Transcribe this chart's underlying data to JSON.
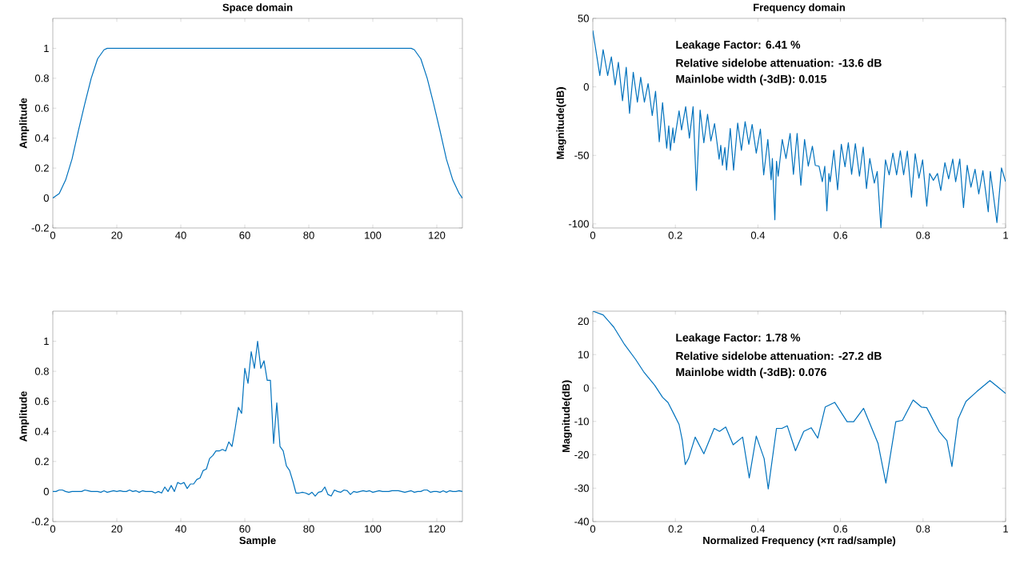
{
  "chart_data": [
    {
      "type": "line",
      "title": "Space domain",
      "ylabel": "Amplitude",
      "color": "#0072bd",
      "xlim": [
        0,
        128
      ],
      "ylim": [
        -0.2,
        1.2
      ],
      "xticks": [
        0,
        20,
        40,
        60,
        80,
        100,
        120
      ],
      "yticks": [
        -0.2,
        0,
        0.2,
        0.4,
        0.6,
        0.8,
        1
      ],
      "x": [
        0,
        2,
        4,
        6,
        8,
        10,
        12,
        14,
        16,
        17,
        112,
        113,
        115,
        117,
        119,
        121,
        123,
        125,
        127,
        128
      ],
      "values": [
        0,
        0.03,
        0.12,
        0.26,
        0.45,
        0.63,
        0.8,
        0.93,
        0.99,
        1,
        1,
        0.99,
        0.93,
        0.8,
        0.63,
        0.45,
        0.26,
        0.12,
        0.03,
        0
      ]
    },
    {
      "type": "line",
      "title": "Frequency domain",
      "ylabel": "Magnitude(dB)",
      "color": "#0072bd",
      "xlim": [
        0,
        1
      ],
      "ylim": [
        -103,
        50
      ],
      "xticks": [
        0,
        0.2,
        0.4,
        0.6,
        0.8,
        1
      ],
      "yticks": [
        -100,
        -50,
        0,
        50
      ],
      "annotations": [
        "Leakage Factor: 6.41 %",
        "Relative sidelobe attenuation: -13.6 dB",
        "Mainlobe width (-3dB): 0.015"
      ],
      "x": [
        0,
        0.017,
        0.025,
        0.036,
        0.045,
        0.054,
        0.062,
        0.072,
        0.081,
        0.089,
        0.098,
        0.108,
        0.116,
        0.125,
        0.134,
        0.144,
        0.152,
        0.161,
        0.169,
        0.179,
        0.184,
        0.188,
        0.194,
        0.197,
        0.209,
        0.215,
        0.225,
        0.234,
        0.243,
        0.251,
        0.26,
        0.269,
        0.278,
        0.286,
        0.295,
        0.306,
        0.31,
        0.314,
        0.32,
        0.324,
        0.333,
        0.341,
        0.351,
        0.36,
        0.369,
        0.378,
        0.386,
        0.396,
        0.406,
        0.414,
        0.424,
        0.432,
        0.435,
        0.441,
        0.445,
        0.449,
        0.459,
        0.468,
        0.478,
        0.486,
        0.495,
        0.504,
        0.513,
        0.522,
        0.532,
        0.539,
        0.548,
        0.556,
        0.562,
        0.567,
        0.572,
        0.575,
        0.584,
        0.593,
        0.602,
        0.611,
        0.619,
        0.627,
        0.636,
        0.646,
        0.655,
        0.663,
        0.671,
        0.682,
        0.689,
        0.698,
        0.709,
        0.718,
        0.727,
        0.736,
        0.745,
        0.753,
        0.762,
        0.772,
        0.781,
        0.79,
        0.799,
        0.809,
        0.816,
        0.825,
        0.835,
        0.843,
        0.853,
        0.862,
        0.872,
        0.879,
        0.889,
        0.898,
        0.907,
        0.916,
        0.926,
        0.935,
        0.945,
        0.958,
        0.963,
        0.979,
        0.99,
        1
      ],
      "values": [
        41.2,
        8.3,
        27.2,
        8.3,
        21.9,
        1.4,
        17.9,
        -10.1,
        14.3,
        -19.3,
        10.7,
        -11.1,
        7,
        -11.1,
        2.4,
        -20.9,
        -3.2,
        -40,
        -11.5,
        -44.7,
        -28.4,
        -46.3,
        -30,
        -40.8,
        -17.5,
        -31.4,
        -14.5,
        -37.4,
        -14.5,
        -75.5,
        -16.9,
        -40.8,
        -20,
        -39.4,
        -26.8,
        -52.7,
        -42.7,
        -57.3,
        -44.3,
        -60.6,
        -30.4,
        -60.8,
        -26.4,
        -46.3,
        -25.4,
        -41.9,
        -27.4,
        -48.3,
        -30.8,
        -64.2,
        -38.4,
        -67.8,
        -52.3,
        -97,
        -54.3,
        -65.2,
        -38.4,
        -52.3,
        -34,
        -63.8,
        -34,
        -71.8,
        -38.4,
        -57.9,
        -43.3,
        -57.3,
        -57.9,
        -69.2,
        -57.9,
        -90.5,
        -63.2,
        -69.2,
        -46.3,
        -75.1,
        -41.9,
        -58.3,
        -40.8,
        -63.8,
        -41.4,
        -65.2,
        -43.9,
        -74.2,
        -52.3,
        -70.2,
        -61.8,
        -103,
        -53.3,
        -64.2,
        -48.3,
        -64.2,
        -46.7,
        -64.2,
        -46.9,
        -80.5,
        -48.7,
        -66.6,
        -53.3,
        -87.1,
        -63.2,
        -68.2,
        -63.2,
        -75.7,
        -55.3,
        -67.2,
        -52.7,
        -69.2,
        -52.7,
        -88.1,
        -57.3,
        -73.2,
        -60.2,
        -78.1,
        -61.2,
        -91.1,
        -61.8,
        -99,
        -59.2,
        -69.2
      ]
    },
    {
      "type": "line",
      "xlabel": "Sample",
      "ylabel": "Amplitude",
      "color": "#0072bd",
      "xlim": [
        0,
        128
      ],
      "ylim": [
        -0.2,
        1.2
      ],
      "xticks": [
        0,
        20,
        40,
        60,
        80,
        100,
        120
      ],
      "yticks": [
        -0.2,
        0,
        0.2,
        0.4,
        0.6,
        0.8,
        1
      ],
      "x": [
        0,
        1,
        2,
        3,
        4,
        5,
        6,
        7,
        8,
        9,
        10,
        11,
        12,
        13,
        14,
        15,
        16,
        17,
        18,
        19,
        20,
        21,
        22,
        23,
        24,
        25,
        26,
        27,
        28,
        29,
        30,
        31,
        32,
        33,
        34,
        35,
        36,
        37,
        38,
        39,
        40,
        41,
        42,
        43,
        44,
        45,
        46,
        47,
        48,
        49,
        50,
        51,
        52,
        53,
        54,
        55,
        56,
        57,
        58,
        59,
        60,
        61,
        62,
        63,
        64,
        65,
        66,
        67,
        68,
        69,
        70,
        71,
        72,
        73,
        74,
        75,
        76,
        77,
        78,
        79,
        80,
        81,
        82,
        83,
        84,
        85,
        86,
        87,
        88,
        89,
        90,
        91,
        92,
        93,
        94,
        95,
        96,
        97,
        98,
        99,
        100,
        101,
        102,
        103,
        104,
        105,
        106,
        107,
        108,
        109,
        110,
        111,
        112,
        113,
        114,
        115,
        116,
        117,
        118,
        119,
        120,
        121,
        122,
        123,
        124,
        125,
        126,
        127,
        128
      ],
      "values": [
        0,
        0,
        0.01,
        0.01,
        0,
        -0.005,
        0,
        0,
        0,
        0,
        0.01,
        0.005,
        0,
        0,
        0,
        -0.005,
        0.005,
        -0.005,
        0,
        0.005,
        0,
        0.005,
        0,
        0,
        0.01,
        0,
        0.005,
        -0.005,
        0.005,
        0,
        0,
        0,
        -0.01,
        0,
        -0.01,
        0.03,
        0,
        0.04,
        0,
        0.06,
        0.05,
        0.06,
        0.02,
        0.05,
        0.05,
        0.08,
        0.09,
        0.14,
        0.15,
        0.22,
        0.24,
        0.27,
        0.27,
        0.28,
        0.27,
        0.33,
        0.3,
        0.42,
        0.56,
        0.52,
        0.82,
        0.72,
        0.93,
        0.82,
        1,
        0.82,
        0.87,
        0.74,
        0.74,
        0.32,
        0.59,
        0.3,
        0.27,
        0.17,
        0.14,
        0.07,
        -0.01,
        -0.01,
        -0.005,
        -0.01,
        -0.02,
        -0.005,
        -0.03,
        -0.005,
        0,
        0.03,
        -0.02,
        -0.03,
        0.01,
        0,
        -0.005,
        0.01,
        0.005,
        -0.02,
        0,
        -0.005,
        0,
        0.005,
        0,
        0.005,
        -0.005,
        0,
        0.005,
        0,
        0,
        0,
        0.005,
        0.005,
        0.005,
        0,
        -0.005,
        0,
        0.005,
        -0.005,
        0,
        0,
        0.01,
        0.01,
        -0.005,
        0,
        0,
        -0.005,
        0.005,
        -0.005,
        0.005,
        0,
        0,
        0.005,
        0
      ]
    },
    {
      "type": "line",
      "xlabel": "Normalized Frequency  (×π rad/sample)",
      "ylabel": "Magnitude(dB)",
      "color": "#0072bd",
      "xlim": [
        0,
        1
      ],
      "ylim": [
        -40,
        23
      ],
      "xticks": [
        0,
        0.2,
        0.4,
        0.6,
        0.8,
        1
      ],
      "yticks": [
        -40,
        -30,
        -20,
        -10,
        0,
        10,
        20
      ],
      "annotations": [
        "Leakage Factor: 1.78 %",
        "Relative sidelobe attenuation: -27.2 dB",
        "Mainlobe width (-3dB): 0.076"
      ],
      "x": [
        0,
        0.025,
        0.051,
        0.077,
        0.104,
        0.123,
        0.15,
        0.169,
        0.182,
        0.196,
        0.209,
        0.217,
        0.224,
        0.232,
        0.248,
        0.269,
        0.294,
        0.307,
        0.322,
        0.34,
        0.363,
        0.379,
        0.396,
        0.415,
        0.425,
        0.445,
        0.458,
        0.471,
        0.491,
        0.511,
        0.529,
        0.545,
        0.563,
        0.586,
        0.616,
        0.632,
        0.656,
        0.691,
        0.71,
        0.734,
        0.75,
        0.776,
        0.796,
        0.809,
        0.839,
        0.858,
        0.87,
        0.885,
        0.904,
        0.93,
        0.962,
        0.98,
        1
      ],
      "values": [
        23,
        21.9,
        18.2,
        13,
        8.5,
        4.9,
        0.8,
        -2.8,
        -4.3,
        -7.7,
        -10.9,
        -15.8,
        -22.9,
        -21.1,
        -14.7,
        -19.7,
        -12.1,
        -13,
        -11.7,
        -17,
        -14.7,
        -26.9,
        -14.4,
        -21.1,
        -30.2,
        -12.1,
        -12.1,
        -11.3,
        -18.8,
        -13,
        -11.9,
        -15,
        -5.7,
        -4.3,
        -10.1,
        -10.1,
        -6.1,
        -16.6,
        -28.5,
        -10.1,
        -9.7,
        -3.6,
        -5.7,
        -5.9,
        -13,
        -15.8,
        -23.5,
        -9.3,
        -4,
        -1.1,
        2.2,
        0.4,
        -1.6
      ]
    }
  ]
}
